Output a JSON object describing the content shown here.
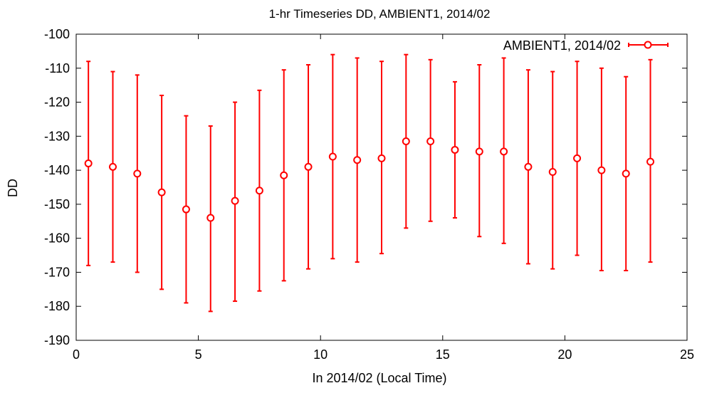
{
  "chart_data": {
    "type": "scatter",
    "title": "1-hr Timeseries DD, AMBIENT1, 2014/02",
    "xlabel": "In 2014/02 (Local Time)",
    "ylabel": "DD",
    "xlim": [
      0,
      25
    ],
    "ylim": [
      -190,
      -100
    ],
    "xticks": [
      0,
      5,
      10,
      15,
      20,
      25
    ],
    "yticks": [
      -100,
      -110,
      -120,
      -130,
      -140,
      -150,
      -160,
      -170,
      -180,
      -190
    ],
    "grid": false,
    "legend_position": "top-right",
    "series": [
      {
        "name": "AMBIENT1, 2014/02",
        "color": "#ff0000",
        "marker": "open-circle",
        "error_bars": true,
        "points": [
          {
            "x": 0.5,
            "y": -138,
            "lo": -168,
            "hi": -108
          },
          {
            "x": 1.5,
            "y": -139,
            "lo": -167,
            "hi": -111
          },
          {
            "x": 2.5,
            "y": -141,
            "lo": -170,
            "hi": -112
          },
          {
            "x": 3.5,
            "y": -146.5,
            "lo": -175,
            "hi": -118
          },
          {
            "x": 4.5,
            "y": -151.5,
            "lo": -179,
            "hi": -124
          },
          {
            "x": 5.5,
            "y": -154,
            "lo": -181.5,
            "hi": -127
          },
          {
            "x": 6.5,
            "y": -149,
            "lo": -178.5,
            "hi": -120
          },
          {
            "x": 7.5,
            "y": -146,
            "lo": -175.5,
            "hi": -116.5
          },
          {
            "x": 8.5,
            "y": -141.5,
            "lo": -172.5,
            "hi": -110.5
          },
          {
            "x": 9.5,
            "y": -139,
            "lo": -169,
            "hi": -109
          },
          {
            "x": 10.5,
            "y": -136,
            "lo": -166,
            "hi": -106
          },
          {
            "x": 11.5,
            "y": -137,
            "lo": -167,
            "hi": -107
          },
          {
            "x": 12.5,
            "y": -136.5,
            "lo": -164.5,
            "hi": -108
          },
          {
            "x": 13.5,
            "y": -131.5,
            "lo": -157,
            "hi": -106
          },
          {
            "x": 14.5,
            "y": -131.5,
            "lo": -155,
            "hi": -107.5
          },
          {
            "x": 15.5,
            "y": -134,
            "lo": -154,
            "hi": -114
          },
          {
            "x": 16.5,
            "y": -134.5,
            "lo": -159.5,
            "hi": -109
          },
          {
            "x": 17.5,
            "y": -134.5,
            "lo": -161.5,
            "hi": -107
          },
          {
            "x": 18.5,
            "y": -139,
            "lo": -167.5,
            "hi": -110.5
          },
          {
            "x": 19.5,
            "y": -140.5,
            "lo": -169,
            "hi": -111
          },
          {
            "x": 20.5,
            "y": -136.5,
            "lo": -165,
            "hi": -108
          },
          {
            "x": 21.5,
            "y": -140,
            "lo": -169.5,
            "hi": -110
          },
          {
            "x": 22.5,
            "y": -141,
            "lo": -169.5,
            "hi": -112.5
          },
          {
            "x": 23.5,
            "y": -137.5,
            "lo": -167,
            "hi": -107.5
          }
        ]
      }
    ]
  }
}
